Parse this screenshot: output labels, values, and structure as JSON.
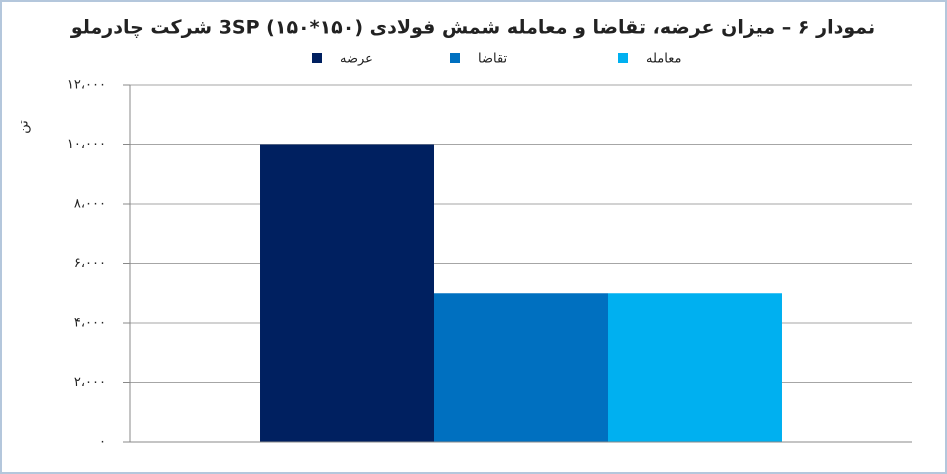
{
  "chart_data": {
    "type": "bar",
    "title": "نمودار ۶ – میزان عرضه، تقاضا و معامله شمش فولادی (۱۵۰*۱۵۰) 3SP شرکت چادرملو",
    "y_label": "تن",
    "categories": [
      null
    ],
    "series": [
      {
        "name": "عرضه",
        "color": "#002060",
        "values": [
          10000
        ]
      },
      {
        "name": "تقاضا",
        "color": "#0070c0",
        "values": [
          5000
        ]
      },
      {
        "name": "معامله",
        "color": "#00b0f0",
        "values": [
          5000
        ]
      }
    ],
    "ylim": [
      0,
      12000
    ],
    "yticks": [
      {
        "value": 0,
        "label": "۰"
      },
      {
        "value": 2000,
        "label": "۲،۰۰۰"
      },
      {
        "value": 4000,
        "label": "۴،۰۰۰"
      },
      {
        "value": 6000,
        "label": "۶،۰۰۰"
      },
      {
        "value": 8000,
        "label": "۸،۰۰۰"
      },
      {
        "value": 10000,
        "label": "۱۰،۰۰۰"
      },
      {
        "value": 12000,
        "label": "۱۲،۰۰۰"
      }
    ],
    "grid": true,
    "legend": "top"
  }
}
